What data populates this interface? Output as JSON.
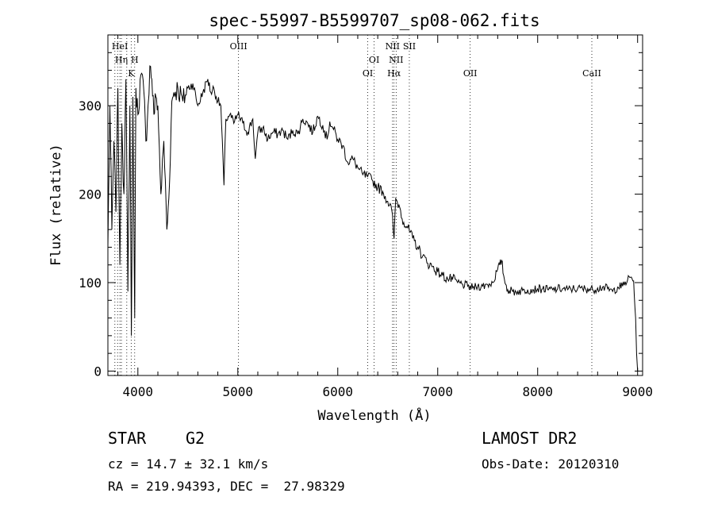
{
  "chart_data": {
    "type": "line",
    "title": "spec-55997-B5599707_sp08-062.fits",
    "xlabel": "Wavelength (Å)",
    "ylabel": "Flux (relative)",
    "xlim": [
      3700,
      9050
    ],
    "ylim": [
      -5,
      380
    ],
    "xticks": [
      4000,
      5000,
      6000,
      7000,
      8000,
      9000
    ],
    "yticks": [
      0,
      100,
      200,
      300
    ],
    "grid": false,
    "series": [
      {
        "values_x": [
          3700,
          3720,
          3740,
          3760,
          3780,
          3800,
          3820,
          3840,
          3860,
          3880,
          3900,
          3920,
          3935,
          3950,
          3968,
          3980,
          4000,
          4030,
          4060,
          4080,
          4102,
          4120,
          4140,
          4160,
          4180,
          4200,
          4230,
          4260,
          4290,
          4310,
          4340,
          4360,
          4400,
          4450,
          4500,
          4550,
          4600,
          4650,
          4700,
          4730,
          4760,
          4800,
          4830,
          4861,
          4880,
          4920,
          4960,
          5000,
          5050,
          5100,
          5150,
          5175,
          5200,
          5250,
          5300,
          5350,
          5400,
          5450,
          5500,
          5550,
          5600,
          5650,
          5700,
          5750,
          5800,
          5850,
          5893,
          5920,
          5950,
          6000,
          6050,
          6100,
          6150,
          6200,
          6250,
          6300,
          6350,
          6400,
          6450,
          6500,
          6540,
          6563,
          6580,
          6620,
          6660,
          6700,
          6750,
          6800,
          6850,
          6900,
          6950,
          7000,
          7050,
          7100,
          7150,
          7200,
          7250,
          7300,
          7350,
          7400,
          7450,
          7500,
          7550,
          7600,
          7620,
          7640,
          7660,
          7680,
          7700,
          7750,
          7800,
          7850,
          7900,
          7950,
          8000,
          8050,
          8100,
          8150,
          8200,
          8250,
          8300,
          8350,
          8400,
          8450,
          8500,
          8550,
          8600,
          8650,
          8700,
          8750,
          8800,
          8850,
          8900,
          8930,
          8960,
          8980,
          8990,
          9000
        ],
        "values_y": [
          140,
          300,
          160,
          260,
          180,
          320,
          120,
          280,
          200,
          330,
          90,
          300,
          40,
          310,
          60,
          320,
          290,
          335,
          315,
          260,
          300,
          345,
          330,
          290,
          310,
          300,
          200,
          260,
          160,
          195,
          305,
          315,
          320,
          305,
          320,
          325,
          300,
          315,
          330,
          315,
          320,
          305,
          300,
          210,
          285,
          290,
          280,
          290,
          280,
          270,
          285,
          240,
          270,
          275,
          262,
          270,
          268,
          272,
          262,
          272,
          268,
          285,
          280,
          270,
          288,
          278,
          262,
          282,
          275,
          262,
          255,
          236,
          240,
          230,
          222,
          220,
          215,
          208,
          203,
          192,
          182,
          150,
          195,
          185,
          168,
          162,
          150,
          140,
          130,
          122,
          118,
          112,
          108,
          104,
          104,
          100,
          98,
          96,
          94,
          96,
          96,
          98,
          100,
          115,
          120,
          125,
          108,
          98,
          92,
          90,
          90,
          91,
          92,
          92,
          93,
          93,
          92,
          92,
          93,
          93,
          92,
          93,
          93,
          93,
          93,
          92,
          94,
          95,
          93,
          90,
          95,
          96,
          103,
          106,
          102,
          60,
          20,
          0
        ]
      }
    ],
    "annotations": [
      {
        "label": "HeI",
        "x": 3820,
        "row": 1
      },
      {
        "label": "Hη",
        "x": 3835,
        "row": 2
      },
      {
        "label": "H",
        "x": 3968,
        "row": 2
      },
      {
        "label": "K",
        "x": 3933,
        "row": 3
      },
      {
        "label": "OIII",
        "x": 5007,
        "row": 1
      },
      {
        "label": "OI",
        "x": 6300,
        "row": 3
      },
      {
        "label": "OI",
        "x": 6364,
        "row": 2
      },
      {
        "label": "NII",
        "x": 6548,
        "row": 1
      },
      {
        "label": "NII",
        "x": 6584,
        "row": 2
      },
      {
        "label": "Hα",
        "x": 6563,
        "row": 3
      },
      {
        "label": "SII",
        "x": 6716,
        "row": 1
      },
      {
        "label": "OII",
        "x": 7325,
        "row": 3
      },
      {
        "label": "CaII",
        "x": 8542,
        "row": 3
      }
    ],
    "line_markers_x": [
      3770,
      3797,
      3820,
      3835,
      3889,
      3933,
      3968,
      5007,
      6300,
      6364,
      6548,
      6563,
      6584,
      6716,
      7325,
      8542
    ]
  },
  "info": {
    "object_class": "STAR",
    "subclass": "G2",
    "survey": "LAMOST DR2",
    "cz_line": "cz = 14.7 ± 32.1 km/s",
    "obs_date_line": "Obs-Date: 20120310",
    "coords_line": "RA = 219.94393, DEC =  27.98329"
  }
}
